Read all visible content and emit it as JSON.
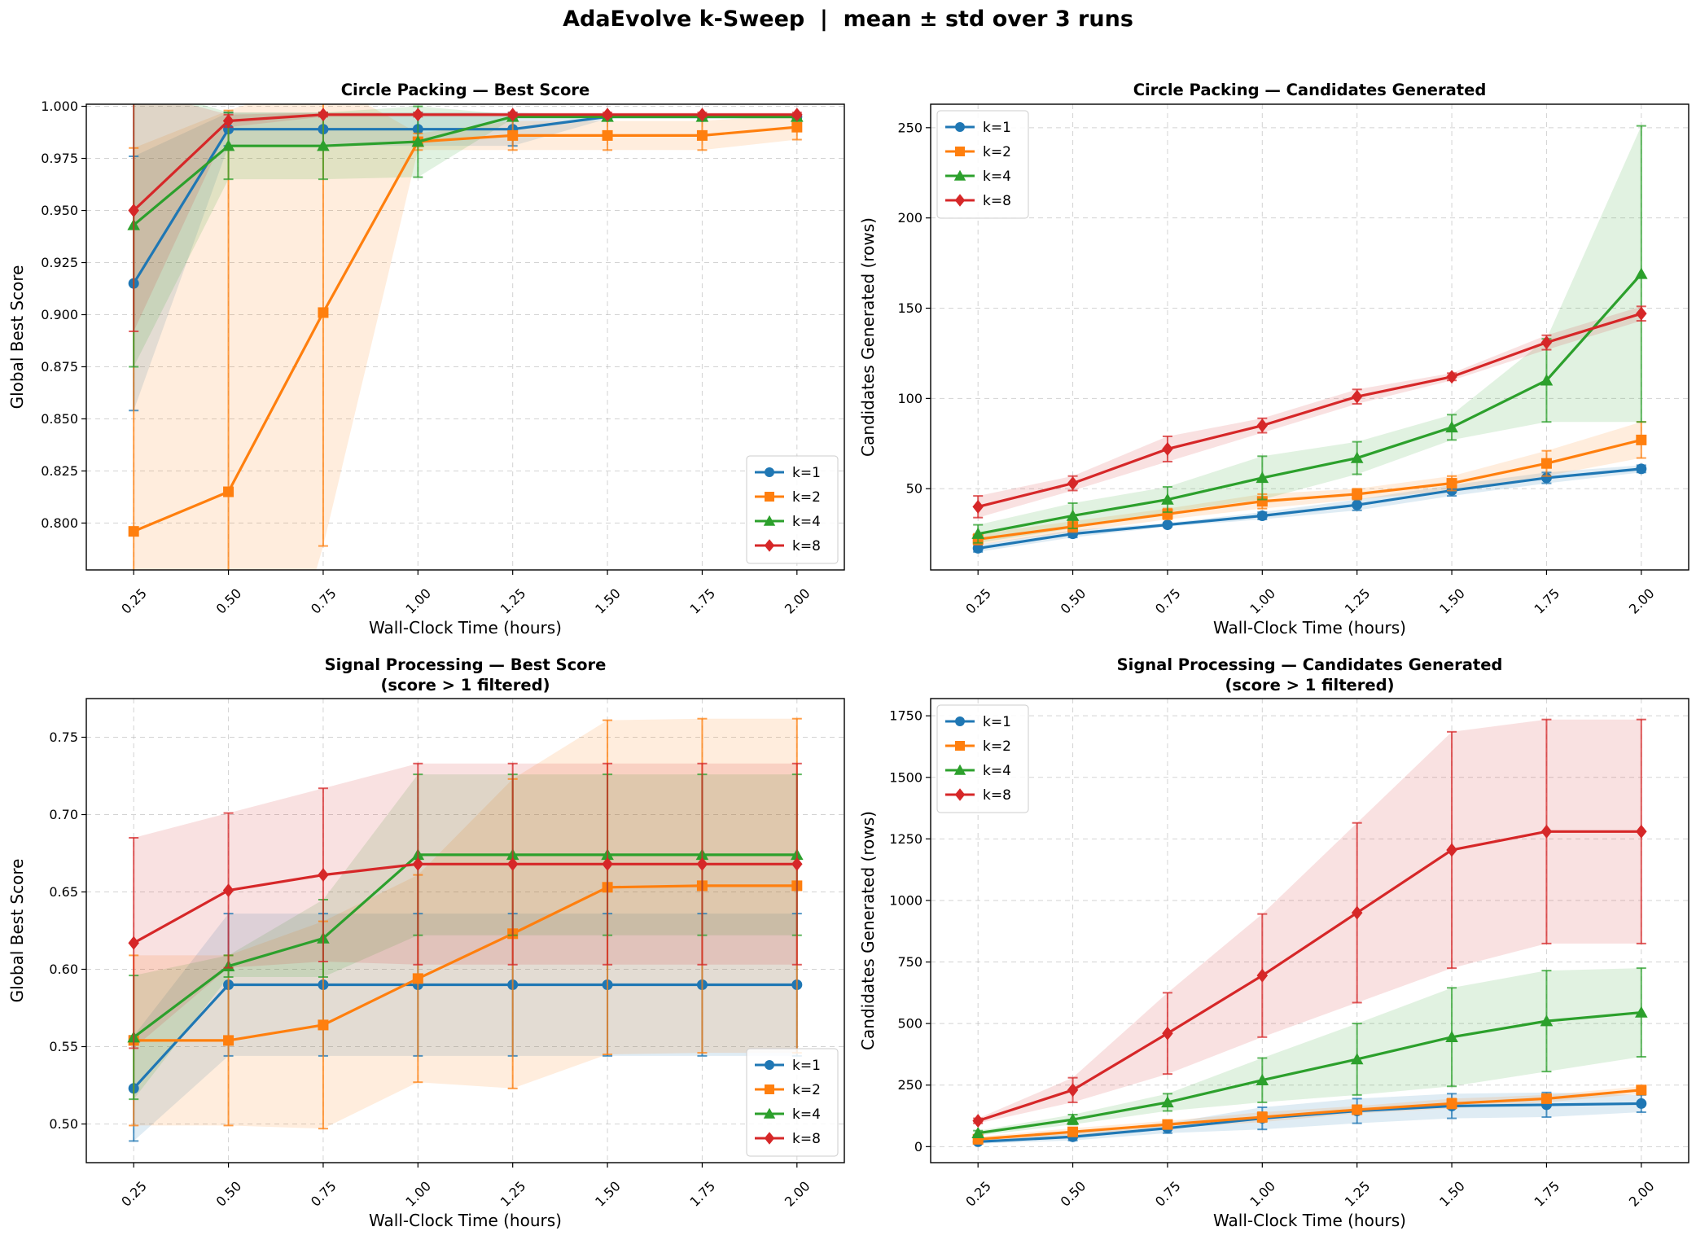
{
  "suptitle": "AdaEvolve k-Sweep  |  mean ± std over 3 runs",
  "colors": {
    "k=1": "#1f77b4",
    "k=2": "#ff7f0e",
    "k=4": "#2ca02c",
    "k=8": "#d62728"
  },
  "chart_data": [
    {
      "type": "line",
      "title": "Circle Packing — Best Score",
      "xlabel": "Wall-Clock Time (hours)",
      "ylabel": "Global Best Score",
      "x": [
        0.25,
        0.5,
        0.75,
        1.0,
        1.25,
        1.5,
        1.75,
        2.0
      ],
      "x_ticks": [
        "0.25",
        "0.50",
        "0.75",
        "1.00",
        "1.25",
        "1.50",
        "1.75",
        "2.00"
      ],
      "xlim": [
        0.125,
        2.125
      ],
      "ylim": [
        0.7775,
        1.001
      ],
      "y_ticks": [
        "0.800",
        "0.825",
        "0.850",
        "0.875",
        "0.900",
        "0.925",
        "0.950",
        "0.975",
        "1.000"
      ],
      "y_tick_values": [
        0.8,
        0.825,
        0.85,
        0.875,
        0.9,
        0.925,
        0.95,
        0.975,
        1.0
      ],
      "legend": "lower-right",
      "grid": true,
      "series": [
        {
          "name": "k=1",
          "marker": "circle",
          "values": [
            0.915,
            0.989,
            0.989,
            0.989,
            0.989,
            0.995,
            0.995,
            0.995
          ],
          "std": [
            0.061,
            0.008,
            0.008,
            0.008,
            0.008,
            0.001,
            0.001,
            0.001
          ]
        },
        {
          "name": "k=2",
          "marker": "square",
          "values": [
            0.796,
            0.815,
            0.901,
            0.983,
            0.986,
            0.986,
            0.986,
            0.99
          ],
          "std": [
            0.184,
            0.183,
            0.112,
            0.004,
            0.007,
            0.007,
            0.007,
            0.006
          ]
        },
        {
          "name": "k=4",
          "marker": "triangle",
          "values": [
            0.943,
            0.981,
            0.981,
            0.983,
            0.995,
            0.995,
            0.995,
            0.995
          ],
          "std": [
            0.068,
            0.016,
            0.016,
            0.017,
            0.001,
            0.001,
            0.001,
            0.001
          ]
        },
        {
          "name": "k=8",
          "marker": "diamond",
          "values": [
            0.95,
            0.993,
            0.996,
            0.996,
            0.996,
            0.996,
            0.996,
            0.996
          ],
          "std": [
            0.058,
            0.003,
            0.001,
            0.001,
            0.001,
            0.001,
            0.001,
            0.001
          ]
        }
      ]
    },
    {
      "type": "line",
      "title": "Circle Packing — Candidates Generated",
      "xlabel": "Wall-Clock Time (hours)",
      "ylabel": "Candidates Generated (rows)",
      "x": [
        0.25,
        0.5,
        0.75,
        1.0,
        1.25,
        1.5,
        1.75,
        2.0
      ],
      "x_ticks": [
        "0.25",
        "0.50",
        "0.75",
        "1.00",
        "1.25",
        "1.50",
        "1.75",
        "2.00"
      ],
      "xlim": [
        0.125,
        2.125
      ],
      "ylim": [
        5,
        263
      ],
      "y_ticks": [
        "50",
        "100",
        "150",
        "200",
        "250"
      ],
      "y_tick_values": [
        50,
        100,
        150,
        200,
        250
      ],
      "legend": "upper-left",
      "grid": true,
      "series": [
        {
          "name": "k=1",
          "marker": "circle",
          "values": [
            17,
            25,
            30,
            35,
            41,
            49,
            56,
            61
          ],
          "std": [
            2,
            2,
            1,
            2,
            3,
            3,
            3,
            2
          ]
        },
        {
          "name": "k=2",
          "marker": "square",
          "values": [
            22,
            29,
            36,
            43,
            47,
            53,
            64,
            77
          ],
          "std": [
            3,
            3,
            3,
            4,
            3,
            4,
            7,
            10
          ]
        },
        {
          "name": "k=4",
          "marker": "triangle",
          "values": [
            25,
            35,
            44,
            56,
            67,
            84,
            110,
            169
          ],
          "std": [
            5,
            7,
            7,
            12,
            9,
            7,
            23,
            82
          ]
        },
        {
          "name": "k=8",
          "marker": "diamond",
          "values": [
            40,
            53,
            72,
            85,
            101,
            112,
            131,
            147
          ],
          "std": [
            6,
            4,
            7,
            4,
            4,
            2,
            4,
            4
          ]
        }
      ]
    },
    {
      "type": "line",
      "title": "Signal Processing — Best Score",
      "subtitle": "(score > 1 filtered)",
      "xlabel": "Wall-Clock Time (hours)",
      "ylabel": "Global Best Score",
      "x": [
        0.25,
        0.5,
        0.75,
        1.0,
        1.25,
        1.5,
        1.75,
        2.0
      ],
      "x_ticks": [
        "0.25",
        "0.50",
        "0.75",
        "1.00",
        "1.25",
        "1.50",
        "1.75",
        "2.00"
      ],
      "xlim": [
        0.125,
        2.125
      ],
      "ylim": [
        0.475,
        0.775
      ],
      "y_ticks": [
        "0.50",
        "0.55",
        "0.60",
        "0.65",
        "0.70",
        "0.75"
      ],
      "y_tick_values": [
        0.5,
        0.55,
        0.6,
        0.65,
        0.7,
        0.75
      ],
      "legend": "lower-right",
      "grid": true,
      "series": [
        {
          "name": "k=1",
          "marker": "circle",
          "values": [
            0.523,
            0.59,
            0.59,
            0.59,
            0.59,
            0.59,
            0.59,
            0.59
          ],
          "std": [
            0.034,
            0.046,
            0.046,
            0.046,
            0.046,
            0.046,
            0.046,
            0.046
          ]
        },
        {
          "name": "k=2",
          "marker": "square",
          "values": [
            0.554,
            0.554,
            0.564,
            0.594,
            0.623,
            0.653,
            0.654,
            0.654
          ],
          "std": [
            0.055,
            0.055,
            0.067,
            0.067,
            0.1,
            0.108,
            0.108,
            0.108
          ]
        },
        {
          "name": "k=4",
          "marker": "triangle",
          "values": [
            0.556,
            0.602,
            0.62,
            0.674,
            0.674,
            0.674,
            0.674,
            0.674
          ],
          "std": [
            0.04,
            0.007,
            0.025,
            0.052,
            0.052,
            0.052,
            0.052,
            0.052
          ]
        },
        {
          "name": "k=8",
          "marker": "diamond",
          "values": [
            0.617,
            0.651,
            0.661,
            0.668,
            0.668,
            0.668,
            0.668,
            0.668
          ],
          "std": [
            0.068,
            0.05,
            0.056,
            0.065,
            0.065,
            0.065,
            0.065,
            0.065
          ]
        }
      ]
    },
    {
      "type": "line",
      "title": "Signal Processing — Candidates Generated",
      "subtitle": "(score > 1 filtered)",
      "xlabel": "Wall-Clock Time (hours)",
      "ylabel": "Candidates Generated (rows)",
      "x": [
        0.25,
        0.5,
        0.75,
        1.0,
        1.25,
        1.5,
        1.75,
        2.0
      ],
      "x_ticks": [
        "0.25",
        "0.50",
        "0.75",
        "1.00",
        "1.25",
        "1.50",
        "1.75",
        "2.00"
      ],
      "xlim": [
        0.125,
        2.125
      ],
      "ylim": [
        -65,
        1820
      ],
      "y_ticks": [
        "0",
        "250",
        "500",
        "750",
        "1000",
        "1250",
        "1500",
        "1750"
      ],
      "y_tick_values": [
        0,
        250,
        500,
        750,
        1000,
        1250,
        1500,
        1750
      ],
      "legend": "upper-left",
      "grid": true,
      "series": [
        {
          "name": "k=1",
          "marker": "circle",
          "values": [
            20,
            40,
            75,
            115,
            145,
            165,
            170,
            175
          ],
          "std": [
            8,
            15,
            20,
            45,
            50,
            50,
            50,
            35
          ]
        },
        {
          "name": "k=2",
          "marker": "square",
          "values": [
            30,
            60,
            90,
            120,
            150,
            175,
            195,
            230
          ],
          "std": [
            10,
            15,
            15,
            20,
            15,
            20,
            15,
            15
          ]
        },
        {
          "name": "k=4",
          "marker": "triangle",
          "values": [
            55,
            110,
            180,
            270,
            355,
            445,
            510,
            545
          ],
          "std": [
            10,
            20,
            35,
            90,
            145,
            200,
            205,
            180
          ]
        },
        {
          "name": "k=8",
          "marker": "diamond",
          "values": [
            105,
            230,
            460,
            695,
            950,
            1205,
            1280,
            1280
          ],
          "std": [
            10,
            50,
            165,
            250,
            365,
            480,
            455,
            455
          ]
        }
      ]
    }
  ]
}
